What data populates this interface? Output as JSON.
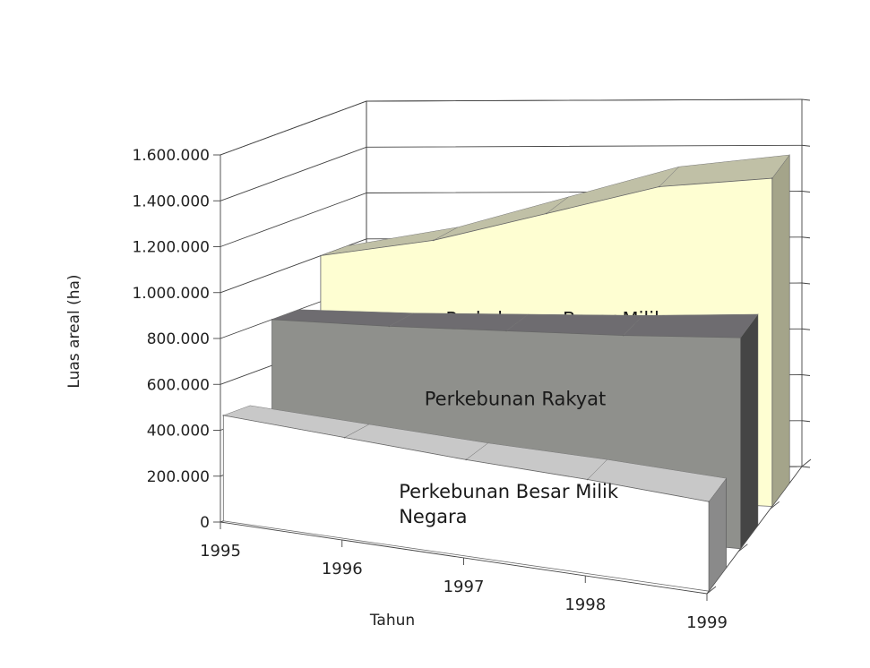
{
  "chart_data": {
    "type": "area",
    "subtype": "3d-area",
    "title": "",
    "xlabel": "Tahun",
    "ylabel": "Luas areal (ha)",
    "x": [
      "1995",
      "1996",
      "1997",
      "1998",
      "1999"
    ],
    "y_ticks": [
      "0",
      "200.000",
      "400.000",
      "600.000",
      "800.000",
      "1.000.000",
      "1.200.000",
      "1.400.000",
      "1.600.000"
    ],
    "ylim": [
      0,
      1600000
    ],
    "grid": true,
    "legend": "none",
    "series": [
      {
        "name": "Perkebunan Besar Milik Negara",
        "label_line1": "Perkebunan Besar Milik",
        "label_line2": "Negara",
        "values": [
          460000,
          440000,
          420000,
          410000,
          390000
        ],
        "colors": {
          "front": "#ffffff",
          "top": "#c8c8c8",
          "side": "#8a8a8a"
        }
      },
      {
        "name": "Perkebunan Rakyat",
        "values": [
          800000,
          820000,
          850000,
          880000,
          920000
        ],
        "colors": {
          "front": "#8f908c",
          "top": "#6e6c70",
          "side": "#454545"
        }
      },
      {
        "name": "Perkebunan Besar Milik",
        "values": [
          1000000,
          1090000,
          1230000,
          1370000,
          1430000
        ],
        "colors": {
          "front": "#fefed2",
          "top": "#c0c0a6",
          "side": "#a4a48a"
        }
      }
    ]
  }
}
